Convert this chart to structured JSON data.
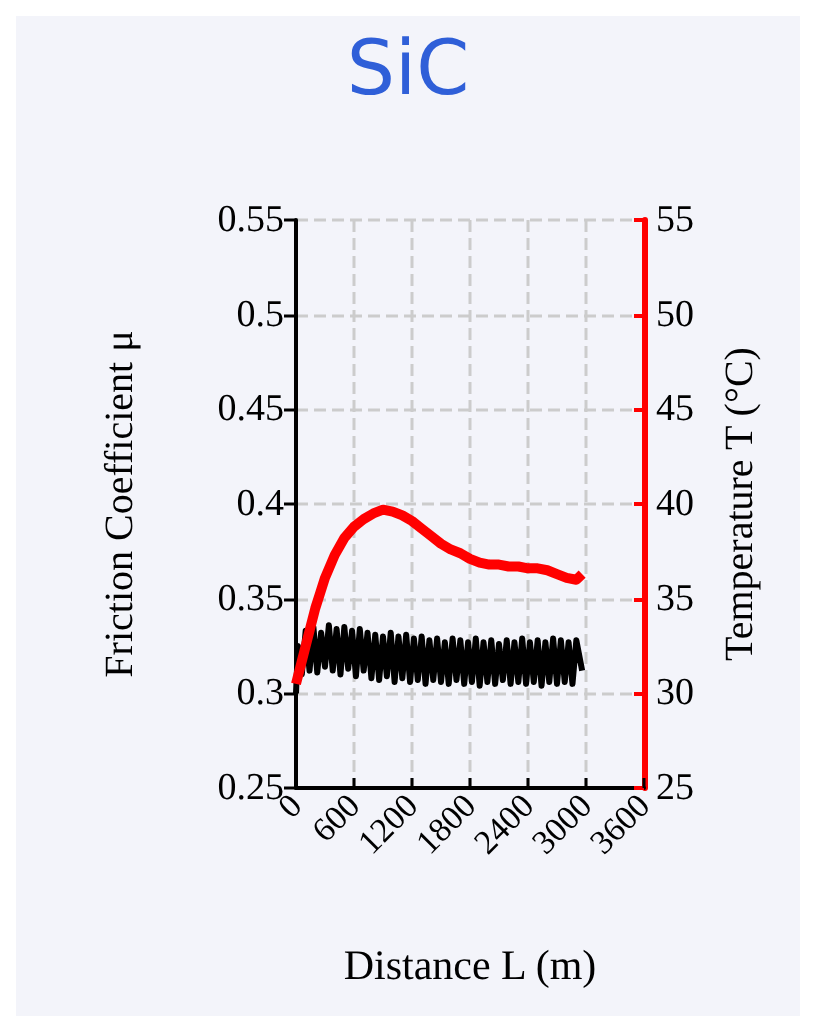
{
  "chart_data": {
    "type": "line",
    "title": "SiC",
    "xlabel": "Distance L (m)",
    "ylabel": "Friction Coefficient μ",
    "y2label": "Temperature T (°C)",
    "xlim": [
      0,
      3600
    ],
    "xticks": [
      0,
      600,
      1200,
      1800,
      2400,
      3000,
      3600
    ],
    "ylim": [
      0.25,
      0.55
    ],
    "yticks": [
      0.25,
      0.3,
      0.35,
      0.4,
      0.45,
      0.5,
      0.55
    ],
    "y2lim": [
      25,
      55
    ],
    "y2ticks": [
      25,
      30,
      35,
      40,
      45,
      50,
      55
    ],
    "grid": true,
    "marker": "none",
    "line_style": "solid",
    "series": [
      {
        "color": "#000000",
        "x": [
          0,
          20,
          60,
          100,
          140,
          180,
          220,
          260,
          300,
          340,
          380,
          420,
          460,
          500,
          540,
          580,
          620,
          660,
          700,
          740,
          780,
          820,
          860,
          900,
          940,
          980,
          1020,
          1060,
          1100,
          1140,
          1180,
          1220,
          1260,
          1300,
          1340,
          1380,
          1420,
          1460,
          1500,
          1540,
          1580,
          1620,
          1660,
          1700,
          1740,
          1780,
          1820,
          1860,
          1900,
          1940,
          1980,
          2020,
          2060,
          2100,
          2140,
          2180,
          2220,
          2260,
          2300,
          2340,
          2380,
          2420,
          2460,
          2500,
          2540,
          2580,
          2620,
          2660,
          2700,
          2740,
          2780,
          2820,
          2860,
          2900,
          2960
        ],
        "values": [
          0.3,
          0.325,
          0.31,
          0.333,
          0.312,
          0.335,
          0.311,
          0.332,
          0.314,
          0.336,
          0.312,
          0.334,
          0.31,
          0.335,
          0.313,
          0.333,
          0.309,
          0.334,
          0.312,
          0.332,
          0.308,
          0.331,
          0.307,
          0.33,
          0.309,
          0.332,
          0.306,
          0.33,
          0.308,
          0.331,
          0.306,
          0.329,
          0.307,
          0.33,
          0.305,
          0.328,
          0.307,
          0.329,
          0.306,
          0.327,
          0.305,
          0.329,
          0.307,
          0.328,
          0.305,
          0.327,
          0.306,
          0.329,
          0.304,
          0.327,
          0.306,
          0.328,
          0.305,
          0.326,
          0.307,
          0.328,
          0.305,
          0.327,
          0.306,
          0.329,
          0.305,
          0.327,
          0.306,
          0.328,
          0.304,
          0.327,
          0.306,
          0.329,
          0.305,
          0.328,
          0.306,
          0.327,
          0.305,
          0.328,
          0.312
        ]
      },
      {
        "color": "#ff0000",
        "axis": "y2",
        "x": [
          0,
          50,
          100,
          150,
          200,
          250,
          300,
          400,
          500,
          600,
          700,
          800,
          900,
          1000,
          1100,
          1200,
          1300,
          1400,
          1500,
          1600,
          1700,
          1800,
          1900,
          2000,
          2100,
          2200,
          2300,
          2400,
          2500,
          2600,
          2700,
          2800,
          2900,
          2960
        ],
        "values": [
          30.5,
          31.5,
          32.5,
          33.5,
          34.5,
          35.3,
          36.1,
          37.3,
          38.2,
          38.8,
          39.2,
          39.5,
          39.7,
          39.6,
          39.4,
          39.1,
          38.7,
          38.3,
          37.9,
          37.6,
          37.4,
          37.1,
          36.9,
          36.8,
          36.8,
          36.7,
          36.7,
          36.6,
          36.6,
          36.5,
          36.3,
          36.1,
          36.0,
          36.3
        ]
      }
    ]
  }
}
